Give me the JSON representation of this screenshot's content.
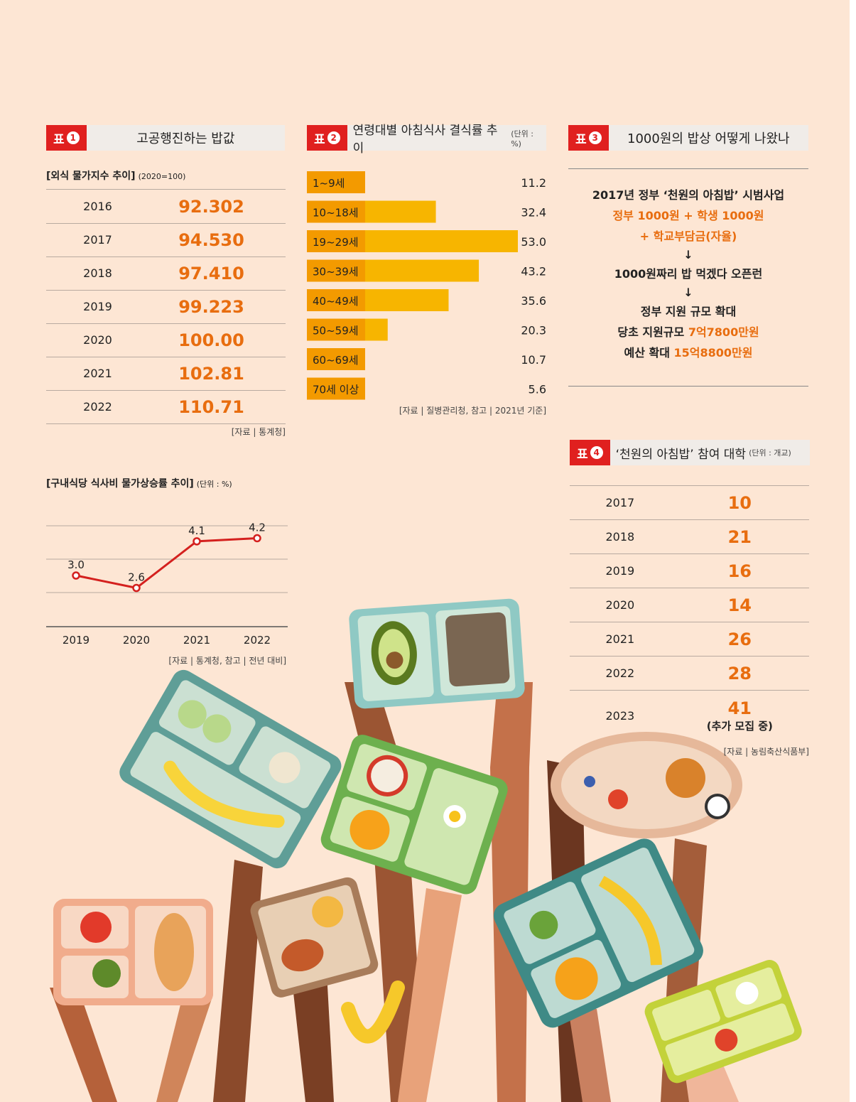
{
  "chart_data": [
    {
      "type": "table",
      "badge": "표",
      "badge_num": "1",
      "title": "고공행진하는 밥값",
      "subtitle": "[외식 물가지수 추이]",
      "subtitle_note": "(2020=100)",
      "rows": [
        {
          "year": "2016",
          "value": "92.302"
        },
        {
          "year": "2017",
          "value": "94.530"
        },
        {
          "year": "2018",
          "value": "97.410"
        },
        {
          "year": "2019",
          "value": "99.223"
        },
        {
          "year": "2020",
          "value": "100.00"
        },
        {
          "year": "2021",
          "value": "102.81"
        },
        {
          "year": "2022",
          "value": "110.71"
        }
      ],
      "source": "[자료 | 통계청]"
    },
    {
      "type": "line",
      "title": "[구내식당 식사비 물가상승률 추이]",
      "unit": "(단위 : %)",
      "x": [
        "2019",
        "2020",
        "2021",
        "2022"
      ],
      "values": [
        3.0,
        2.6,
        4.1,
        4.2
      ],
      "labels": [
        "3.0",
        "2.6",
        "4.1",
        "4.2"
      ],
      "ylim": [
        1.4,
        4.6
      ],
      "grid": true,
      "color": "#d4201e",
      "source": "[자료 | 통계청, 참고 | 전년 대비]"
    },
    {
      "type": "bar",
      "badge": "표",
      "badge_num": "2",
      "title": "연령대별 아침식사 결식률 추이",
      "unit": "(단위 : %)",
      "categories": [
        "1~9세",
        "10~18세",
        "19~29세",
        "30~39세",
        "40~49세",
        "50~59세",
        "60~69세",
        "70세 이상"
      ],
      "values": [
        11.2,
        32.4,
        53.0,
        43.2,
        35.6,
        20.3,
        10.7,
        5.6
      ],
      "value_labels": [
        "11.2",
        "32.4",
        "53.0",
        "43.2",
        "35.6",
        "20.3",
        "10.7",
        "5.6"
      ],
      "xlim": [
        0,
        53.0
      ],
      "bar_color": "#f7b500",
      "label_bg_color": "#f39a00",
      "source": "[자료 | 질병관리청, 참고 | 2021년 기준]"
    },
    {
      "type": "table",
      "badge": "표",
      "badge_num": "4",
      "title": "‘천원의 아침밥’ 참여 대학",
      "unit": "(단위 : 개교)",
      "rows": [
        {
          "year": "2017",
          "value": "10",
          "note": ""
        },
        {
          "year": "2018",
          "value": "21",
          "note": ""
        },
        {
          "year": "2019",
          "value": "16",
          "note": ""
        },
        {
          "year": "2020",
          "value": "14",
          "note": ""
        },
        {
          "year": "2021",
          "value": "26",
          "note": ""
        },
        {
          "year": "2022",
          "value": "28",
          "note": ""
        },
        {
          "year": "2023",
          "value": "41",
          "note": "(추가 모집 중)"
        }
      ],
      "source": "[자료 | 농림축산식품부]"
    }
  ],
  "table3": {
    "badge": "표",
    "badge_num": "3",
    "title": "1000원의 밥상 어떻게 나왔나",
    "line1": "2017년 정부 ‘천원의 아침밥’ 시범사업",
    "line2": "정부 1000원 + 학생 1000원",
    "line3": "+ 학교부담금(자율)",
    "arrow": "↓",
    "line4": "1000원짜리 밥 먹겠다 오픈런",
    "line5": "정부 지원 규모 확대",
    "line6_label": "당초 지원규모",
    "line6_value": "7억7800만원",
    "line7_label": "예산 확대",
    "line7_value": "15억8800만원"
  },
  "colors": {
    "background": "#fde6d4",
    "accent_red": "#e0201f",
    "accent_orange": "#e86d0f"
  }
}
